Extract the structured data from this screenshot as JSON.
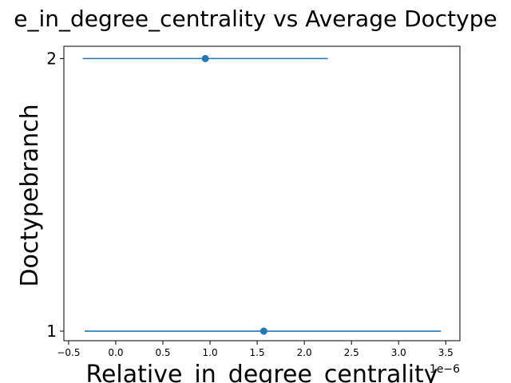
{
  "chart_data": {
    "type": "scatter",
    "title": "e_in_degree_centrality vs Average Doctype",
    "xlabel": "Relative_in_degree_centrality",
    "ylabel": "Doctypebranch",
    "x_offset_label": "1e−6",
    "x_ticks": [
      -0.5,
      0.0,
      0.5,
      1.0,
      1.5,
      2.0,
      2.5,
      3.0,
      3.5
    ],
    "x_tick_labels": [
      "−0.5",
      "0.0",
      "0.5",
      "1.0",
      "1.5",
      "2.0",
      "2.5",
      "3.0",
      "3.5"
    ],
    "y_ticks": [
      1,
      2
    ],
    "y_tick_labels": [
      "1",
      "2"
    ],
    "xlim": [
      -0.55,
      3.65
    ],
    "ylim": [
      0.965,
      2.045
    ],
    "grid": false,
    "color": "#1f77b4",
    "series": [
      {
        "points": [
          {
            "y": 2,
            "x": 0.95,
            "xerr_low": -0.35,
            "xerr_high": 2.25
          },
          {
            "y": 1,
            "x": 1.57,
            "xerr_low": -0.33,
            "xerr_high": 3.45
          }
        ]
      }
    ]
  }
}
